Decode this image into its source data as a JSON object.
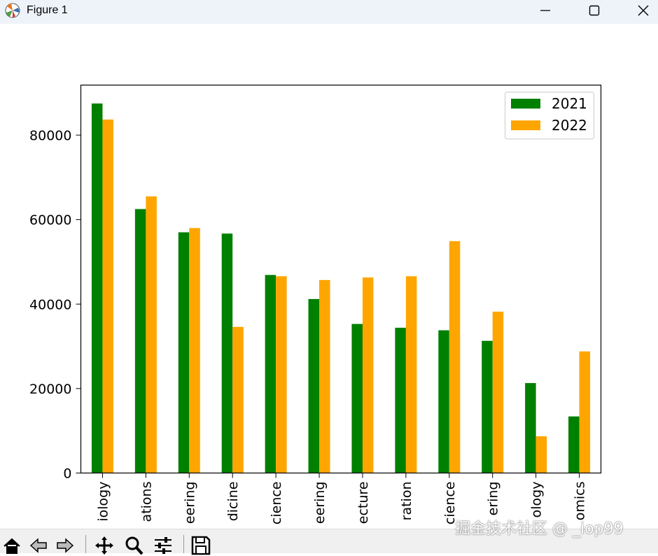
{
  "window": {
    "title": "Figure 1",
    "app_icon": "matplotlib-icon",
    "controls": [
      "minimize-icon",
      "maximize-icon",
      "close-icon"
    ]
  },
  "toolbar": {
    "icons": [
      "home-icon",
      "back-icon",
      "forward-icon",
      "pan-icon",
      "zoom-icon",
      "configure-subplots-icon",
      "save-icon"
    ]
  },
  "watermark": "掘金技术社区 @ _iop99",
  "colors": {
    "2021": "#008000",
    "2022": "#ffa500"
  },
  "chart_data": {
    "type": "bar",
    "categories": [
      "iology",
      "ations",
      "eering",
      "dicine",
      "cience",
      "eering",
      "ecture",
      "ration",
      "cience",
      "ering",
      "ology",
      "omics"
    ],
    "series": [
      {
        "name": "2021",
        "color": "#008000",
        "values": [
          87500,
          62500,
          57000,
          56700,
          46900,
          41200,
          35300,
          34400,
          33800,
          31300,
          21300,
          13400
        ]
      },
      {
        "name": "2022",
        "color": "#ffa500",
        "values": [
          83700,
          65500,
          58000,
          34600,
          46600,
          45700,
          46300,
          46600,
          54900,
          38200,
          8700,
          28800
        ]
      }
    ],
    "yticks": [
      "0",
      "20000",
      "40000",
      "60000",
      "80000"
    ],
    "ylim": [
      0,
      92000
    ],
    "legend_position": "upper right",
    "grid": false
  }
}
